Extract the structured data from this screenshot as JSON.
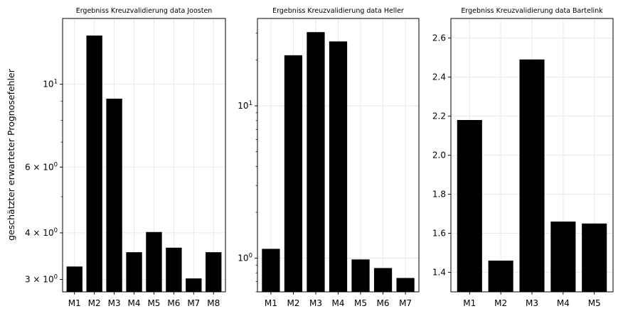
{
  "shared": {
    "ylabel": "geschätzter erwarteter Prognosefehler"
  },
  "chart_data": [
    {
      "type": "bar",
      "title": "Ergebniss Kreuzvalidierung data Joosten",
      "scale": "log",
      "categories": [
        "M1",
        "M2",
        "M3",
        "M4",
        "M5",
        "M6",
        "M7",
        "M8"
      ],
      "values": [
        3.25,
        13.5,
        9.15,
        3.55,
        4.02,
        3.65,
        3.02,
        3.55
      ],
      "ylim": [
        2.78,
        15.0
      ],
      "yticks": [
        {
          "value": 3,
          "base": "3 × 10",
          "exp": "0"
        },
        {
          "value": 4,
          "base": "4 × 10",
          "exp": "0"
        },
        {
          "value": 6,
          "base": "6 × 10",
          "exp": "0"
        },
        {
          "value": 10,
          "base": "10",
          "exp": "1"
        }
      ],
      "grid": true
    },
    {
      "type": "bar",
      "title": "Ergebniss Kreuzvalidierung data Heller",
      "scale": "log",
      "categories": [
        "M1",
        "M2",
        "M3",
        "M4",
        "M5",
        "M6",
        "M7"
      ],
      "values": [
        1.15,
        21.5,
        30.5,
        26.5,
        0.98,
        0.86,
        0.74
      ],
      "ylim": [
        0.6,
        37.5
      ],
      "yticks": [
        {
          "value": 1,
          "base": "10",
          "exp": "0"
        },
        {
          "value": 10,
          "base": "10",
          "exp": "1"
        }
      ],
      "grid": true
    },
    {
      "type": "bar",
      "title": "Ergebniss Kreuzvalidierung data Bartelink",
      "scale": "linear",
      "categories": [
        "M1",
        "M2",
        "M3",
        "M4",
        "M5"
      ],
      "values": [
        2.18,
        1.46,
        2.49,
        1.66,
        1.65
      ],
      "ylim": [
        1.3,
        2.7
      ],
      "yticks": [
        {
          "value": 1.4,
          "label": "1.4"
        },
        {
          "value": 1.6,
          "label": "1.6"
        },
        {
          "value": 1.8,
          "label": "1.8"
        },
        {
          "value": 2.0,
          "label": "2.0"
        },
        {
          "value": 2.2,
          "label": "2.2"
        },
        {
          "value": 2.4,
          "label": "2.4"
        },
        {
          "value": 2.6,
          "label": "2.6"
        }
      ],
      "grid": true
    }
  ]
}
